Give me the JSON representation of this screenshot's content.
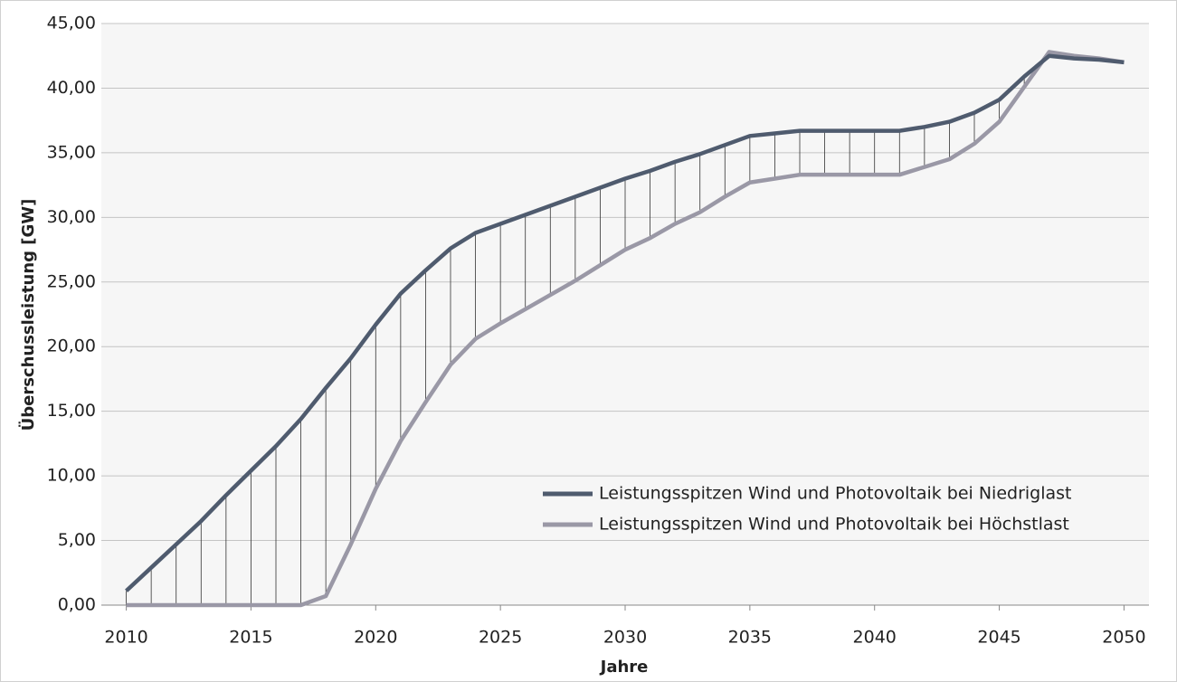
{
  "chart_data": {
    "type": "line",
    "x_label": "Jahre",
    "y_label": "Überschussleistung [GW]",
    "x": [
      2010,
      2011,
      2012,
      2013,
      2014,
      2015,
      2016,
      2017,
      2018,
      2019,
      2020,
      2021,
      2022,
      2023,
      2024,
      2025,
      2026,
      2027,
      2028,
      2029,
      2030,
      2031,
      2032,
      2033,
      2034,
      2035,
      2036,
      2037,
      2038,
      2039,
      2040,
      2041,
      2042,
      2043,
      2044,
      2045,
      2046,
      2047,
      2048,
      2049,
      2050
    ],
    "series": [
      {
        "name": "Leistungsspitzen Wind und Photovoltaik bei Niedriglast",
        "color": "#4f5b6e",
        "values": [
          1.1,
          2.9,
          4.7,
          6.5,
          8.5,
          10.4,
          12.3,
          14.4,
          16.8,
          19.1,
          21.7,
          24.1,
          25.9,
          27.6,
          28.8,
          29.5,
          30.2,
          30.9,
          31.6,
          32.3,
          33.0,
          33.6,
          34.3,
          34.9,
          35.6,
          36.3,
          36.5,
          36.7,
          36.7,
          36.7,
          36.7,
          36.7,
          37.0,
          37.4,
          38.1,
          39.1,
          40.9,
          42.5,
          42.3,
          42.2,
          42.0
        ]
      },
      {
        "name": "Leistungsspitzen Wind und Photovoltaik bei Höchstlast",
        "color": "#9a98a6",
        "values": [
          0,
          0,
          0,
          0,
          0,
          0,
          0,
          0,
          0.7,
          4.7,
          9.0,
          12.7,
          15.7,
          18.6,
          20.6,
          21.8,
          22.9,
          24.0,
          25.1,
          26.3,
          27.5,
          28.4,
          29.5,
          30.4,
          31.6,
          32.7,
          33.0,
          33.3,
          33.3,
          33.3,
          33.3,
          33.3,
          33.9,
          34.5,
          35.7,
          37.4,
          40.1,
          42.8,
          42.5,
          42.3,
          42.0
        ]
      }
    ],
    "xlim": [
      2009,
      2051
    ],
    "xticks": [
      2010,
      2015,
      2020,
      2025,
      2030,
      2035,
      2040,
      2045,
      2050
    ],
    "ylim": [
      0,
      45
    ],
    "yticks": [
      {
        "value": 0,
        "label": "0,00"
      },
      {
        "value": 5,
        "label": "5,00"
      },
      {
        "value": 10,
        "label": "10,00"
      },
      {
        "value": 15,
        "label": "15,00"
      },
      {
        "value": 20,
        "label": "20,00"
      },
      {
        "value": 25,
        "label": "25,00"
      },
      {
        "value": 30,
        "label": "30,00"
      },
      {
        "value": 35,
        "label": "35,00"
      },
      {
        "value": 40,
        "label": "40,00"
      },
      {
        "value": 45,
        "label": "45,00"
      }
    ],
    "grid": true,
    "drop_lines": true,
    "legend": "lower right"
  }
}
